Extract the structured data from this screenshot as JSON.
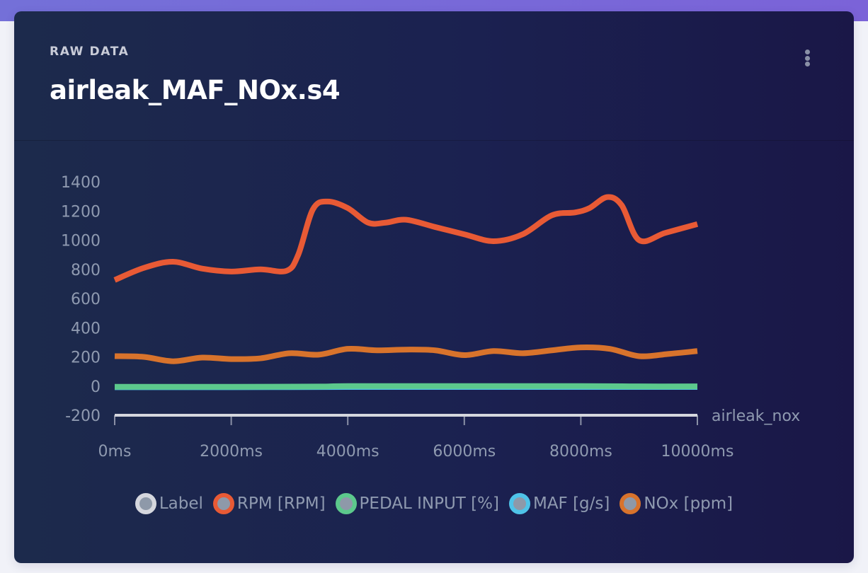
{
  "header": {
    "eyebrow": "RAW DATA",
    "title": "airleak_MAF_NOx.s4",
    "menu_icon": "kebab-vertical-icon"
  },
  "colors": {
    "label": "#d5d7de",
    "rpm": "#e85a35",
    "pedal": "#5cc98c",
    "maf": "#4fc3e8",
    "nox": "#d8732c",
    "axis": "#c9cbd6"
  },
  "chart_data": {
    "type": "line",
    "title": "airleak_MAF_NOx.s4",
    "xlabel": "",
    "ylabel": "",
    "xlim": [
      0,
      10000
    ],
    "ylim": [
      -200,
      1400
    ],
    "x_ticks": [
      0,
      2000,
      4000,
      6000,
      8000,
      10000
    ],
    "x_tick_labels": [
      "0ms",
      "2000ms",
      "4000ms",
      "6000ms",
      "8000ms",
      "10000ms"
    ],
    "y_ticks": [
      1400,
      1200,
      1000,
      800,
      600,
      400,
      200,
      0,
      -200
    ],
    "y_tick_labels": [
      "1400",
      "1200",
      "1000",
      "800",
      "600",
      "400",
      "200",
      "0",
      "-200"
    ],
    "grid": false,
    "legend_position": "bottom",
    "series": [
      {
        "name": "Label",
        "key": "label",
        "annotation": "airleak_nox",
        "x": [
          0,
          10000
        ],
        "values": [
          -200,
          -200
        ]
      },
      {
        "name": "RPM [RPM]",
        "key": "rpm",
        "x": [
          0,
          500,
          1000,
          1500,
          2000,
          2500,
          2950,
          3150,
          3400,
          3650,
          4000,
          4350,
          4650,
          5000,
          5500,
          6000,
          6500,
          7000,
          7500,
          7900,
          8150,
          8450,
          8700,
          9000,
          9450,
          10000
        ],
        "values": [
          727,
          810,
          852,
          805,
          785,
          800,
          790,
          900,
          1210,
          1265,
          1220,
          1120,
          1120,
          1140,
          1090,
          1040,
          993,
          1040,
          1170,
          1190,
          1220,
          1295,
          1240,
          1000,
          1050,
          1110
        ]
      },
      {
        "name": "PEDAL INPUT [%]",
        "key": "pedal",
        "x": [
          0,
          2000,
          3500,
          4000,
          6000,
          8000,
          9000,
          10000
        ],
        "values": [
          -5,
          -5,
          -3,
          0,
          0,
          0,
          -2,
          -2
        ]
      },
      {
        "name": "MAF [g/s]",
        "key": "maf",
        "x": [
          0,
          2000,
          4000,
          6000,
          8000,
          10000
        ],
        "values": [
          -8,
          -8,
          -6,
          -6,
          -6,
          -6
        ]
      },
      {
        "name": "NOx [ppm]",
        "key": "nox",
        "x": [
          0,
          500,
          1000,
          1500,
          2000,
          2500,
          3000,
          3500,
          4000,
          4500,
          5000,
          5500,
          6000,
          6500,
          7000,
          7500,
          8000,
          8500,
          9000,
          9500,
          10000
        ],
        "values": [
          205,
          200,
          170,
          195,
          185,
          190,
          225,
          215,
          255,
          245,
          250,
          245,
          212,
          240,
          225,
          245,
          265,
          255,
          205,
          220,
          240
        ]
      }
    ]
  }
}
